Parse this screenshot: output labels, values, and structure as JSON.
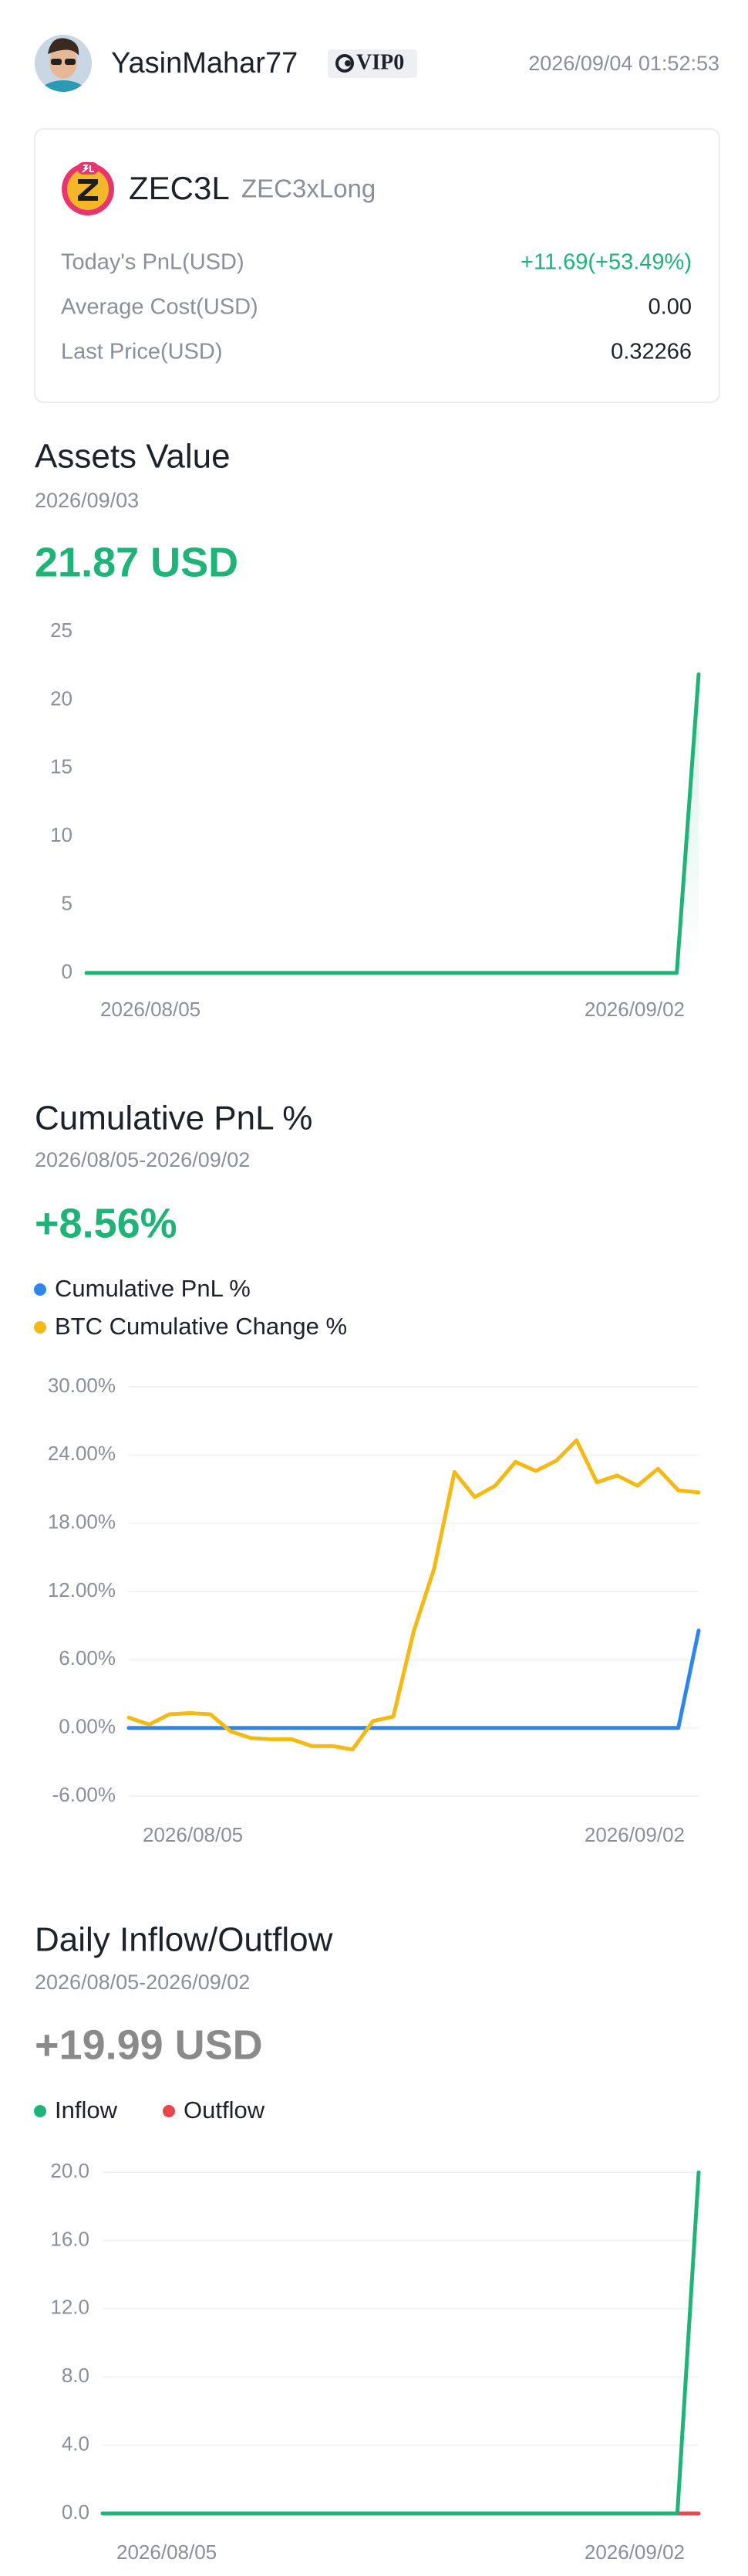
{
  "header": {
    "username": "YasinMahar77",
    "vip": "VIP0",
    "timestamp": "2026/09/04 01:52:53"
  },
  "asset": {
    "symbol": "ZEC3L",
    "name": "ZEC3xLong",
    "rows": [
      {
        "label": "Today's PnL(USD)",
        "value": "+11.69(+53.49%)",
        "color": "#1fb377"
      },
      {
        "label": "Average Cost(USD)",
        "value": "0.00",
        "color": "#1d2129"
      },
      {
        "label": "Last Price(USD)",
        "value": "0.32266",
        "color": "#1d2129"
      }
    ]
  },
  "chart_data": [
    {
      "type": "line",
      "title": "Assets Value",
      "subtitle": "2026/09/03",
      "headline": "21.87 USD",
      "headline_color": "#1fb377",
      "categories": [
        "2026/08/05",
        null,
        null,
        null,
        null,
        null,
        null,
        null,
        null,
        null,
        null,
        null,
        null,
        null,
        null,
        null,
        null,
        null,
        null,
        null,
        null,
        null,
        null,
        null,
        null,
        null,
        null,
        null,
        "2026/09/02"
      ],
      "series": [
        {
          "color": "#1fb377",
          "values": [
            0,
            0,
            0,
            0,
            0,
            0,
            0,
            0,
            0,
            0,
            0,
            0,
            0,
            0,
            0,
            0,
            0,
            0,
            0,
            0,
            0,
            0,
            0,
            0,
            0,
            0,
            0,
            0,
            21.87
          ]
        }
      ],
      "area": true,
      "ylim": [
        0,
        25
      ],
      "yticks": [
        0,
        5,
        10,
        15,
        20,
        25
      ],
      "grid": false
    },
    {
      "type": "line",
      "title": "Cumulative PnL %",
      "subtitle": "2026/08/05-2026/09/02",
      "headline": "+8.56%",
      "headline_color": "#1fb377",
      "categories": [
        "2026/08/05",
        null,
        null,
        null,
        null,
        null,
        null,
        null,
        null,
        null,
        null,
        null,
        null,
        null,
        null,
        null,
        null,
        null,
        null,
        null,
        null,
        null,
        null,
        null,
        null,
        null,
        null,
        null,
        "2026/09/02"
      ],
      "series": [
        {
          "name": "Cumulative PnL %",
          "color": "#2e86ea",
          "values": [
            0,
            0,
            0,
            0,
            0,
            0,
            0,
            0,
            0,
            0,
            0,
            0,
            0,
            0,
            0,
            0,
            0,
            0,
            0,
            0,
            0,
            0,
            0,
            0,
            0,
            0,
            0,
            0,
            8.56
          ]
        },
        {
          "name": "BTC Cumulative Change %",
          "color": "#f5b914",
          "values": [
            0.9,
            0.3,
            1.2,
            1.3,
            1.2,
            -0.3,
            -0.9,
            -1.0,
            -1.0,
            -1.6,
            -1.6,
            -1.9,
            0.6,
            1.0,
            8.5,
            14.0,
            22.5,
            20.3,
            21.3,
            23.4,
            22.6,
            23.5,
            25.3,
            21.6,
            22.2,
            21.3,
            22.8,
            20.9,
            20.7
          ]
        }
      ],
      "area": false,
      "ylim": [
        -6,
        30
      ],
      "yticks": [
        {
          "value": -6,
          "label": "-6.00%"
        },
        {
          "value": 0,
          "label": "0.00%"
        },
        {
          "value": 6,
          "label": "6.00%"
        },
        {
          "value": 12,
          "label": "12.00%"
        },
        {
          "value": 18,
          "label": "18.00%"
        },
        {
          "value": 24,
          "label": "24.00%"
        },
        {
          "value": 30,
          "label": "30.00%"
        }
      ],
      "grid": true
    },
    {
      "type": "line",
      "title": "Daily Inflow/Outflow",
      "subtitle": "2026/08/05-2026/09/02",
      "headline": "+19.99 USD",
      "headline_color": "#8a8a8a",
      "categories": [
        "2026/08/05",
        null,
        null,
        null,
        null,
        null,
        null,
        null,
        null,
        null,
        null,
        null,
        null,
        null,
        null,
        null,
        null,
        null,
        null,
        null,
        null,
        null,
        null,
        null,
        null,
        null,
        null,
        null,
        "2026/09/02"
      ],
      "series": [
        {
          "name": "Inflow",
          "color": "#1fb377",
          "values": [
            0,
            0,
            0,
            0,
            0,
            0,
            0,
            0,
            0,
            0,
            0,
            0,
            0,
            0,
            0,
            0,
            0,
            0,
            0,
            0,
            0,
            0,
            0,
            0,
            0,
            0,
            0,
            0,
            19.99
          ]
        },
        {
          "name": "Outflow",
          "color": "#e5484d",
          "values": [
            0,
            0,
            0,
            0,
            0,
            0,
            0,
            0,
            0,
            0,
            0,
            0,
            0,
            0,
            0,
            0,
            0,
            0,
            0,
            0,
            0,
            0,
            0,
            0,
            0,
            0,
            0,
            0,
            0
          ]
        }
      ],
      "area": false,
      "ylim": [
        0,
        20
      ],
      "yticks": [
        {
          "value": 0,
          "label": "0.0"
        },
        {
          "value": 4,
          "label": "4.0"
        },
        {
          "value": 8,
          "label": "8.0"
        },
        {
          "value": 12,
          "label": "12.0"
        },
        {
          "value": 16,
          "label": "16.0"
        },
        {
          "value": 20,
          "label": "20.0"
        }
      ],
      "grid": true
    }
  ]
}
